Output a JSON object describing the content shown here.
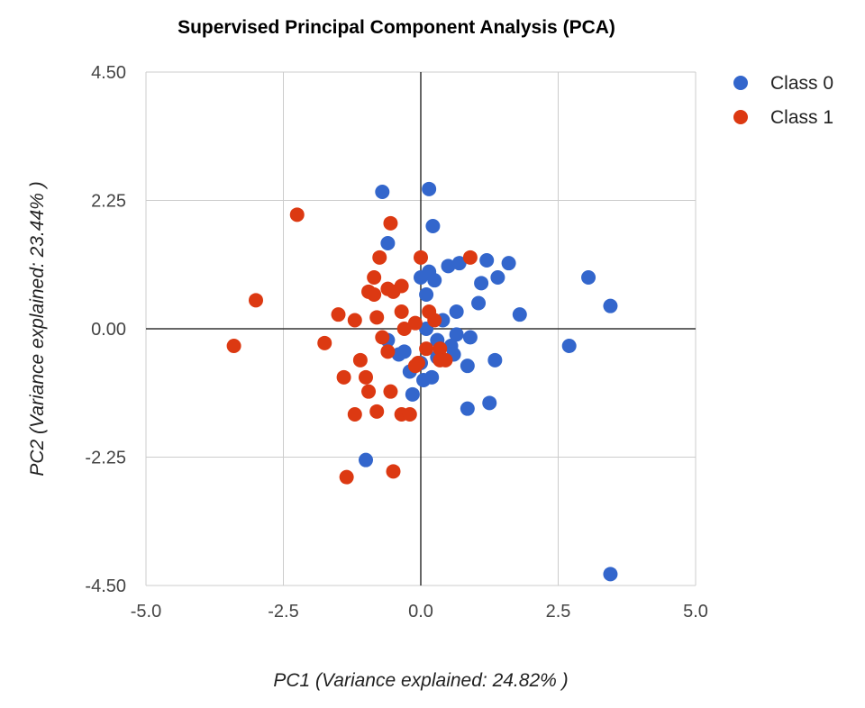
{
  "chart_data": {
    "type": "scatter",
    "title": "Supervised Principal Component Analysis (PCA)",
    "xlabel": "PC1 (Variance explained: 24.82% )",
    "ylabel": "PC2 (Variance explained: 23.44% )",
    "xlim": [
      -5.0,
      5.0
    ],
    "ylim": [
      -4.5,
      4.5
    ],
    "x_ticks": [
      "-5.0",
      "-2.5",
      "0.0",
      "2.5",
      "5.0"
    ],
    "y_ticks": [
      "4.50",
      "2.25",
      "0.00",
      "-2.25",
      "-4.50"
    ],
    "x_tick_values": [
      -5.0,
      -2.5,
      0.0,
      2.5,
      5.0
    ],
    "y_tick_values": [
      4.5,
      2.25,
      0.0,
      -2.25,
      -4.5
    ],
    "grid": true,
    "legend_position": "top-right",
    "series": [
      {
        "name": "Class 0",
        "color": "#3366cc",
        "points": [
          [
            -0.7,
            2.4
          ],
          [
            0.15,
            2.45
          ],
          [
            0.22,
            1.8
          ],
          [
            -0.6,
            1.5
          ],
          [
            0.0,
            0.9
          ],
          [
            0.1,
            0.6
          ],
          [
            0.5,
            1.1
          ],
          [
            0.7,
            1.15
          ],
          [
            1.2,
            1.2
          ],
          [
            1.6,
            1.15
          ],
          [
            1.1,
            0.8
          ],
          [
            1.4,
            0.9
          ],
          [
            0.15,
            1.0
          ],
          [
            0.25,
            0.85
          ],
          [
            3.05,
            0.9
          ],
          [
            3.45,
            0.4
          ],
          [
            1.8,
            0.25
          ],
          [
            1.05,
            0.45
          ],
          [
            0.65,
            0.3
          ],
          [
            0.4,
            0.15
          ],
          [
            0.1,
            0.0
          ],
          [
            0.65,
            -0.1
          ],
          [
            -0.6,
            -0.2
          ],
          [
            -0.3,
            -0.4
          ],
          [
            0.3,
            -0.2
          ],
          [
            0.55,
            -0.3
          ],
          [
            0.9,
            -0.15
          ],
          [
            -0.4,
            -0.45
          ],
          [
            0.3,
            -0.5
          ],
          [
            0.85,
            -0.65
          ],
          [
            0.6,
            -0.45
          ],
          [
            0.2,
            -0.85
          ],
          [
            0.05,
            -0.9
          ],
          [
            -0.15,
            -1.15
          ],
          [
            1.35,
            -0.55
          ],
          [
            0.85,
            -1.4
          ],
          [
            1.25,
            -1.3
          ],
          [
            2.7,
            -0.3
          ],
          [
            -1.0,
            -2.3
          ],
          [
            3.45,
            -4.3
          ],
          [
            -0.2,
            -0.75
          ],
          [
            0.0,
            -0.6
          ]
        ]
      },
      {
        "name": "Class 1",
        "color": "#dc3912",
        "points": [
          [
            -2.25,
            2.0
          ],
          [
            -0.55,
            1.85
          ],
          [
            -0.75,
            1.25
          ],
          [
            0.0,
            1.25
          ],
          [
            0.9,
            1.25
          ],
          [
            -0.85,
            0.9
          ],
          [
            -0.95,
            0.65
          ],
          [
            -0.85,
            0.6
          ],
          [
            -0.6,
            0.7
          ],
          [
            -0.5,
            0.65
          ],
          [
            -0.35,
            0.75
          ],
          [
            -3.0,
            0.5
          ],
          [
            -1.5,
            0.25
          ],
          [
            -1.2,
            0.15
          ],
          [
            -0.8,
            0.2
          ],
          [
            -0.35,
            0.3
          ],
          [
            0.25,
            0.15
          ],
          [
            0.15,
            0.3
          ],
          [
            -0.3,
            0.0
          ],
          [
            -0.1,
            0.1
          ],
          [
            -0.7,
            -0.15
          ],
          [
            -1.75,
            -0.25
          ],
          [
            -3.4,
            -0.3
          ],
          [
            -0.6,
            -0.4
          ],
          [
            0.1,
            -0.35
          ],
          [
            0.35,
            -0.35
          ],
          [
            0.45,
            -0.55
          ],
          [
            -0.05,
            -0.6
          ],
          [
            -1.1,
            -0.55
          ],
          [
            -1.4,
            -0.85
          ],
          [
            -1.0,
            -0.85
          ],
          [
            -0.95,
            -1.1
          ],
          [
            -0.55,
            -1.1
          ],
          [
            -1.2,
            -1.5
          ],
          [
            -0.8,
            -1.45
          ],
          [
            -0.35,
            -1.5
          ],
          [
            -0.2,
            -1.5
          ],
          [
            -1.35,
            -2.6
          ],
          [
            -0.5,
            -2.5
          ],
          [
            -0.1,
            -0.65
          ],
          [
            0.35,
            -0.55
          ]
        ]
      }
    ]
  }
}
